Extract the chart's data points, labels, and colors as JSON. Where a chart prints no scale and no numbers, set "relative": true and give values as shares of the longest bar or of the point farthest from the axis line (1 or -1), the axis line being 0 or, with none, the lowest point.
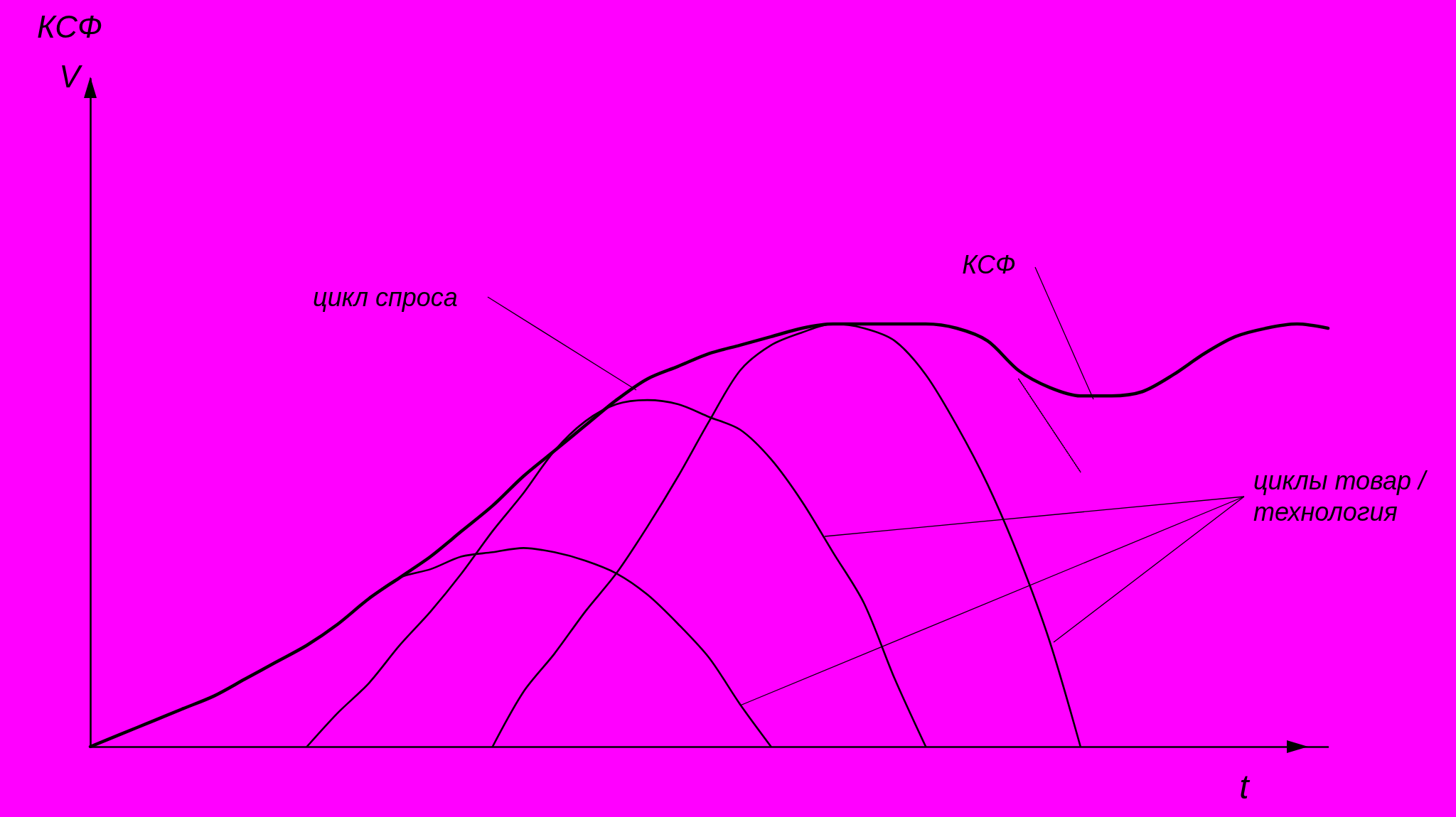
{
  "chart_data": {
    "type": "line",
    "relative": true,
    "xlabel": "t",
    "grid": false,
    "marker": "none",
    "categories": [
      null,
      null,
      null,
      null,
      null,
      null,
      null,
      null,
      null,
      null,
      null,
      null,
      null,
      null,
      null,
      null,
      null,
      null,
      null,
      null,
      null,
      null,
      null,
      null,
      null,
      null,
      null,
      null,
      null,
      null,
      null,
      null,
      null,
      null,
      null,
      null,
      null,
      null,
      null,
      null,
      null
    ],
    "series": [
      {
        "color": "#000000",
        "values": [
          0,
          0.03,
          0.06,
          0.09,
          0.12,
          0.16,
          0.2,
          0.24,
          0.29,
          0.35,
          0.4,
          0.45,
          0.51,
          0.57,
          0.64,
          0.7,
          0.76,
          0.82,
          0.87,
          0.9,
          0.93,
          0.95,
          0.97,
          0.99,
          1,
          1,
          1,
          1,
          0.99,
          0.96,
          0.89,
          0.85,
          0.83,
          0.83,
          0.84,
          0.88,
          0.93,
          0.97,
          0.99,
          1,
          0.99
        ]
      },
      {
        "color": "#000000",
        "values": [
          0,
          0.03,
          0.06,
          0.09,
          0.12,
          0.16,
          0.2,
          0.24,
          0.29,
          0.35,
          0.4,
          0.42,
          0.45,
          0.46,
          0.47,
          0.46,
          0.44,
          0.41,
          0.36,
          0.29,
          0.21,
          0.1,
          0,
          null,
          null,
          null,
          null,
          null,
          null,
          null,
          null,
          null,
          null,
          null,
          null,
          null,
          null,
          null,
          null,
          null,
          null
        ]
      },
      {
        "color": "#000000",
        "values": [
          null,
          null,
          null,
          null,
          null,
          null,
          null,
          0,
          0.08,
          0.15,
          0.24,
          0.32,
          0.41,
          0.51,
          0.6,
          0.7,
          0.77,
          0.81,
          0.82,
          0.81,
          0.78,
          0.75,
          0.68,
          0.58,
          0.46,
          0.34,
          0.16,
          0,
          null,
          null,
          null,
          null,
          null,
          null,
          null,
          null,
          null,
          null,
          null,
          null,
          null
        ]
      },
      {
        "color": "#000000",
        "values": [
          null,
          null,
          null,
          null,
          null,
          null,
          null,
          null,
          null,
          null,
          null,
          null,
          null,
          0,
          0.13,
          0.22,
          0.32,
          0.41,
          0.52,
          0.64,
          0.77,
          0.89,
          0.95,
          0.98,
          1,
          0.99,
          0.96,
          0.88,
          0.76,
          0.62,
          0.45,
          0.25,
          0,
          null,
          null,
          null,
          null,
          null,
          null,
          null,
          null
        ]
      },
      {
        "color": "#000000",
        "line_style": "dotted",
        "values": [
          null,
          null,
          null,
          null,
          null,
          null,
          null,
          null,
          null,
          null,
          null,
          null,
          null,
          null,
          null,
          null,
          null,
          null,
          null,
          null,
          null,
          null,
          null,
          null,
          null,
          null,
          null,
          null,
          null,
          null,
          0.87,
          0.76,
          0.65,
          null,
          null,
          null,
          null,
          null,
          null,
          null,
          null
        ]
      }
    ],
    "annotations": [
      "КСФ\nV",
      "цикл спроса",
      "КСФ",
      "циклы товар /\nтехнология"
    ]
  }
}
